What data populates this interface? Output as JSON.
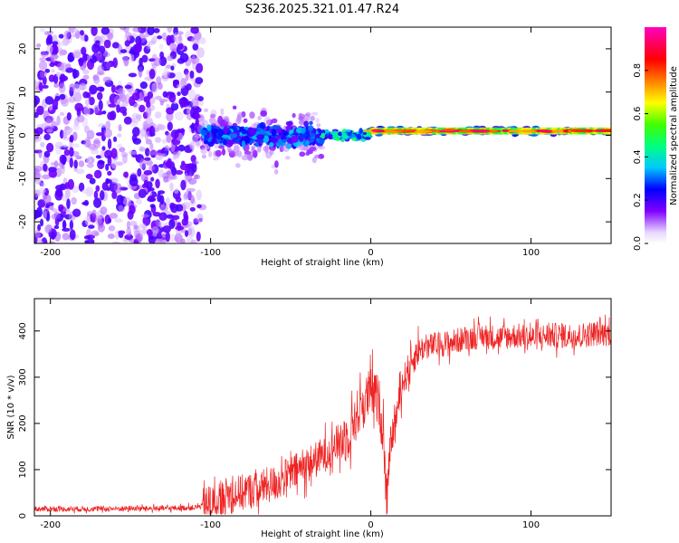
{
  "title": "S236.2025.321.01.47.R24",
  "chart_data": [
    {
      "type": "heatmap",
      "name": "spectrogram",
      "xlabel": "Height of straight line (km)",
      "ylabel": "Frequency (Hz)",
      "xlim": [
        -210,
        150
      ],
      "ylim": [
        -25,
        25
      ],
      "xticks": [
        -200,
        -100,
        0,
        100
      ],
      "yticks": [
        -20,
        -10,
        0,
        10,
        20
      ],
      "colorbar": {
        "label": "Normalized spectral amplitude",
        "range": [
          0,
          1
        ],
        "ticks": [
          0.0,
          0.2,
          0.4,
          0.6,
          0.8
        ],
        "tick_labels": [
          "0.0",
          "0.2",
          "0.4",
          "0.6",
          "0.8"
        ],
        "colors": [
          "#e8d8ff",
          "#8000ff",
          "#0000ff",
          "#00e0ff",
          "#00ff40",
          "#ffff00",
          "#ff8000",
          "#ff0040",
          "#ff00ff"
        ]
      },
      "regions": [
        {
          "x_range": [
            -210,
            -105
          ],
          "description_value": "scattered low amplitude noise",
          "freq_spread_hz": 25,
          "amplitude": 0.15
        },
        {
          "x_range": [
            -105,
            -30
          ],
          "freq_spread_hz": 6,
          "amplitude": 0.35
        },
        {
          "x_range": [
            -30,
            0
          ],
          "freq_spread_hz": 2,
          "amplitude": 0.5
        },
        {
          "x_range": [
            0,
            150
          ],
          "freq_center_hz": 1,
          "freq_spread_hz": 1,
          "amplitude": 0.9
        }
      ]
    },
    {
      "type": "line",
      "name": "snr",
      "xlabel": "Height of straight line (km)",
      "ylabel": "SNR (10 * v/v)",
      "xlim": [
        -210,
        150
      ],
      "ylim": [
        0,
        470
      ],
      "xticks": [
        -200,
        -100,
        0,
        100
      ],
      "yticks": [
        0,
        100,
        200,
        300,
        400
      ],
      "color": "#ee2222",
      "x": [
        -210,
        -190,
        -170,
        -150,
        -130,
        -110,
        -100,
        -90,
        -80,
        -70,
        -60,
        -50,
        -40,
        -30,
        -20,
        -15,
        -10,
        -5,
        0,
        5,
        8,
        10,
        12,
        15,
        20,
        25,
        30,
        40,
        50,
        60,
        70,
        80,
        90,
        100,
        110,
        120,
        130,
        140,
        150
      ],
      "y": [
        15,
        15,
        15,
        16,
        16,
        18,
        25,
        45,
        50,
        60,
        70,
        90,
        110,
        130,
        160,
        170,
        210,
        240,
        270,
        250,
        170,
        20,
        150,
        200,
        290,
        330,
        360,
        370,
        375,
        385,
        390,
        385,
        390,
        385,
        390,
        390,
        390,
        395,
        395
      ]
    }
  ]
}
